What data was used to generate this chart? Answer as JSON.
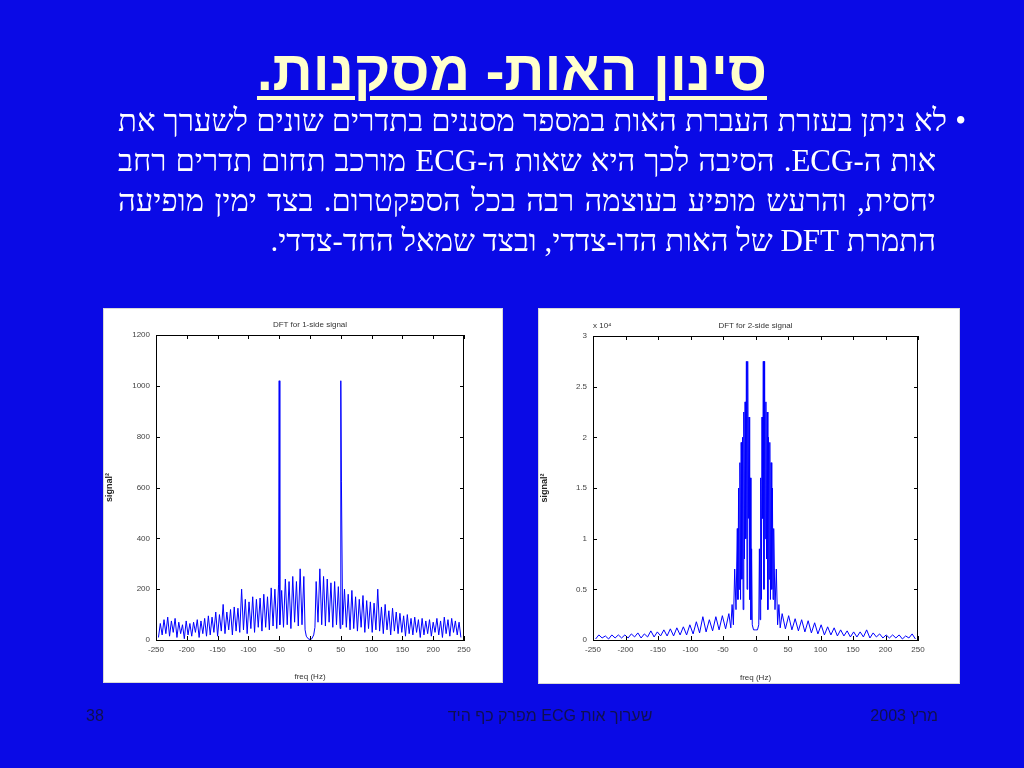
{
  "chart_data": [
    {
      "type": "other",
      "title": "סינון האות- מסקנות.",
      "annotations": [
        "• לא ניתן בעזרת העברת האות במספר מסננים בתדרים שונים לשערך את אות ה-ECG. הסיבה לכך היא שאות ה-ECG מורכב תחום תדרים רחב יחסית, והרעש מופיע בעוצמה רבה בכל הספקטרום. בצד ימין מופיעה התמרת DFT של האות הדו-צדדי, ובצד שמאל החד-צדדי.",
        "38",
        "שערוך אות ECG מפרק כף היד",
        "מרץ 2003"
      ]
    },
    {
      "type": "line",
      "title": "DFT for 1-side signal",
      "xlabel": "freq (Hz)",
      "ylabel": "signal²",
      "color": "#0000ff",
      "xlim": [
        -250,
        250
      ],
      "ylim": [
        0,
        1200
      ],
      "xticks": [
        -250,
        -200,
        -150,
        -100,
        -50,
        0,
        50,
        100,
        150,
        200,
        250
      ],
      "yticks": [
        0,
        200,
        400,
        600,
        800,
        1000,
        1200
      ],
      "x": [
        -246,
        -243,
        -240,
        -237,
        -234,
        -231,
        -228,
        -225,
        -222,
        -219,
        -216,
        -213,
        -210,
        -207,
        -204,
        -201,
        -198,
        -195,
        -192,
        -189,
        -186,
        -183,
        -180,
        -177,
        -174,
        -171,
        -168,
        -165,
        -162,
        -159,
        -156,
        -153,
        -150,
        -147,
        -144,
        -141,
        -138,
        -135,
        -132,
        -129,
        -126,
        -123,
        -120,
        -117,
        -114,
        -111,
        -108,
        -105,
        -102,
        -99,
        -96,
        -93,
        -90,
        -87,
        -84,
        -81,
        -78,
        -75,
        -72,
        -69,
        -66,
        -63,
        -60,
        -57,
        -54,
        -51,
        -50,
        -49,
        -46,
        -43,
        -40,
        -37,
        -34,
        -31,
        -28,
        -25,
        -22,
        -19,
        -16,
        -13,
        -10,
        -8,
        -6,
        -3,
        0,
        3,
        6,
        8,
        10,
        13,
        16,
        19,
        22,
        25,
        28,
        31,
        34,
        37,
        40,
        43,
        46,
        49,
        50,
        51,
        53,
        56,
        59,
        62,
        65,
        68,
        71,
        74,
        77,
        80,
        83,
        86,
        89,
        92,
        95,
        98,
        101,
        104,
        107,
        110,
        113,
        116,
        119,
        122,
        125,
        128,
        131,
        134,
        137,
        140,
        143,
        146,
        149,
        152,
        155,
        158,
        161,
        164,
        167,
        170,
        173,
        176,
        179,
        182,
        185,
        188,
        191,
        194,
        197,
        200,
        203,
        206,
        209,
        212,
        215,
        218,
        221,
        224,
        227,
        230,
        233,
        236,
        239,
        242,
        245
      ],
      "values": [
        10,
        65,
        20,
        80,
        25,
        90,
        15,
        75,
        30,
        85,
        10,
        70,
        25,
        60,
        5,
        75,
        20,
        65,
        15,
        70,
        30,
        80,
        10,
        75,
        25,
        85,
        15,
        95,
        20,
        90,
        30,
        110,
        15,
        100,
        35,
        140,
        25,
        110,
        40,
        120,
        20,
        130,
        35,
        125,
        30,
        200,
        40,
        160,
        25,
        150,
        45,
        170,
        30,
        160,
        50,
        165,
        35,
        180,
        50,
        170,
        40,
        205,
        55,
        200,
        45,
        220,
        1020,
        60,
        195,
        50,
        240,
        60,
        230,
        45,
        250,
        70,
        230,
        55,
        280,
        60,
        250,
        40,
        15,
        5,
        2,
        5,
        20,
        50,
        230,
        70,
        280,
        60,
        250,
        55,
        240,
        70,
        225,
        50,
        230,
        60,
        210,
        45,
        1020,
        625,
        60,
        200,
        50,
        180,
        40,
        195,
        45,
        170,
        35,
        160,
        50,
        175,
        30,
        155,
        45,
        150,
        30,
        145,
        40,
        200,
        35,
        130,
        25,
        140,
        40,
        115,
        20,
        125,
        35,
        110,
        25,
        105,
        30,
        95,
        15,
        100,
        25,
        85,
        20,
        90,
        30,
        80,
        10,
        85,
        20,
        75,
        25,
        80,
        15,
        70,
        30,
        85,
        20,
        75,
        10,
        90,
        25,
        80,
        15,
        85,
        30,
        75,
        20,
        70,
        10
      ]
    },
    {
      "type": "line",
      "title": "DFT for 2-side signal",
      "xlabel": "freq (Hz)",
      "ylabel": "signal²",
      "color": "#0000ff",
      "annotations": [
        "x 10⁴"
      ],
      "xlim": [
        -250,
        250
      ],
      "ylim": [
        0,
        3
      ],
      "xticks": [
        -250,
        -200,
        -150,
        -100,
        -50,
        0,
        50,
        100,
        150,
        200,
        250
      ],
      "yticks": [
        0,
        0.5,
        1,
        1.5,
        2,
        2.5,
        3
      ],
      "x": [
        -246,
        -241,
        -236,
        -231,
        -226,
        -221,
        -216,
        -211,
        -206,
        -201,
        -196,
        -191,
        -186,
        -181,
        -176,
        -171,
        -166,
        -161,
        -156,
        -151,
        -146,
        -141,
        -136,
        -131,
        -126,
        -121,
        -116,
        -111,
        -106,
        -101,
        -96,
        -91,
        -86,
        -81,
        -76,
        -71,
        -66,
        -61,
        -56,
        -51,
        -46,
        -41,
        -38,
        -36,
        -34,
        -32,
        -30,
        -28,
        -27,
        -26,
        -25,
        -24,
        -23,
        -22,
        -21,
        -20,
        -19,
        -18,
        -17,
        -16,
        -15,
        -14,
        -13,
        -12,
        -11,
        -10,
        -9,
        -8,
        -7,
        -6,
        -5,
        -3,
        0,
        3,
        5,
        6,
        7,
        8,
        9,
        10,
        11,
        12,
        13,
        14,
        15,
        16,
        17,
        18,
        19,
        20,
        21,
        22,
        23,
        24,
        25,
        26,
        27,
        28,
        30,
        32,
        34,
        36,
        38,
        41,
        46,
        51,
        56,
        61,
        66,
        71,
        76,
        81,
        86,
        91,
        96,
        101,
        106,
        111,
        116,
        121,
        126,
        131,
        136,
        141,
        146,
        151,
        156,
        161,
        166,
        171,
        176,
        181,
        186,
        191,
        196,
        201,
        206,
        211,
        216,
        221,
        226,
        231,
        236,
        241,
        246
      ],
      "values": [
        0.01,
        0.05,
        0.02,
        0.04,
        0.01,
        0.05,
        0.02,
        0.05,
        0.02,
        0.05,
        0.02,
        0.06,
        0.03,
        0.07,
        0.02,
        0.06,
        0.03,
        0.09,
        0.03,
        0.08,
        0.04,
        0.1,
        0.04,
        0.11,
        0.04,
        0.12,
        0.05,
        0.13,
        0.05,
        0.15,
        0.06,
        0.18,
        0.07,
        0.23,
        0.08,
        0.2,
        0.09,
        0.23,
        0.1,
        0.24,
        0.11,
        0.26,
        0.12,
        0.35,
        0.15,
        0.7,
        0.3,
        1.1,
        0.4,
        1.5,
        0.5,
        1.75,
        0.4,
        1.95,
        0.6,
        2,
        0.3,
        2.25,
        0.8,
        2.35,
        1,
        2.75,
        0.5,
        2.75,
        1.2,
        2.2,
        0.4,
        1.6,
        0.2,
        0.9,
        0.15,
        0.1,
        0.1,
        0.1,
        0.15,
        0.9,
        0.2,
        1.6,
        0.4,
        2.2,
        1.2,
        2.75,
        0.5,
        2.75,
        1,
        2.35,
        0.8,
        2.25,
        0.3,
        2,
        0.6,
        1.95,
        0.4,
        1.75,
        0.5,
        1.5,
        0.4,
        1.1,
        0.3,
        0.7,
        0.15,
        0.35,
        0.12,
        0.26,
        0.11,
        0.24,
        0.1,
        0.21,
        0.09,
        0.2,
        0.08,
        0.19,
        0.07,
        0.17,
        0.06,
        0.15,
        0.05,
        0.13,
        0.05,
        0.12,
        0.04,
        0.1,
        0.04,
        0.09,
        0.03,
        0.08,
        0.03,
        0.08,
        0.03,
        0.1,
        0.02,
        0.07,
        0.03,
        0.06,
        0.02,
        0.05,
        0.02,
        0.05,
        0.02,
        0.05,
        0.01,
        0.04,
        0.02,
        0.06,
        0.01
      ]
    }
  ]
}
